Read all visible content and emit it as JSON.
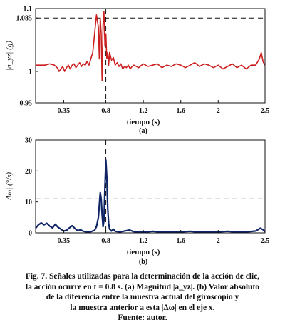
{
  "figure_caption": {
    "line1": "Fig. 7. Señales utilizadas para la determinación de la acción de clic,",
    "line2": "la acción ocurre en t = 0.8 s. (a) Magnitud |a_yz|. (b) Valor absoluto",
    "line3": "de la diferencia entre la muestra actual del giroscopio y",
    "line4": "la muestra anterior a esta |Δω| en el eje x.",
    "line5": "Fuente: autor."
  },
  "colors": {
    "series_a": "#cc1f1f",
    "series_b": "#0f2566",
    "axes": "#111111"
  },
  "chart_data": [
    {
      "type": "line",
      "panel_label": "(a)",
      "xlabel": "tiempo (s)",
      "ylabel": "|a_yz| (g)",
      "xlim": [
        0.05,
        2.5
      ],
      "ylim": [
        0.95,
        1.1
      ],
      "xticks": [
        0.35,
        0.8,
        1.2,
        1.6,
        2.0,
        2.5
      ],
      "xtick_labels": [
        "0.35",
        "0.8",
        "1.2",
        "1.6",
        "2",
        "2.5"
      ],
      "yticks": [
        0.95,
        1.0,
        1.085,
        1.1
      ],
      "ytick_labels": [
        "0.95",
        "1",
        "1.085",
        "1.1"
      ],
      "threshold_y": 1.085,
      "event_x": 0.8,
      "grid": false,
      "series": [
        {
          "x": [
            0.05,
            0.1,
            0.15,
            0.2,
            0.25,
            0.28,
            0.3,
            0.32,
            0.34,
            0.36,
            0.38,
            0.4,
            0.42,
            0.44,
            0.46,
            0.48,
            0.5,
            0.52,
            0.54,
            0.56,
            0.58,
            0.6,
            0.62,
            0.64,
            0.66,
            0.68,
            0.7,
            0.72,
            0.73,
            0.74,
            0.75,
            0.76,
            0.77,
            0.78,
            0.79,
            0.8,
            0.81,
            0.82,
            0.83,
            0.84,
            0.86,
            0.88,
            0.9,
            0.92,
            0.94,
            0.96,
            0.98,
            1.0,
            1.02,
            1.04,
            1.06,
            1.08,
            1.1,
            1.15,
            1.2,
            1.25,
            1.3,
            1.35,
            1.4,
            1.45,
            1.5,
            1.55,
            1.6,
            1.65,
            1.7,
            1.75,
            1.8,
            1.85,
            1.9,
            1.95,
            2.0,
            2.05,
            2.1,
            2.15,
            2.2,
            2.25,
            2.3,
            2.35,
            2.4,
            2.44,
            2.46,
            2.48,
            2.5
          ],
          "y": [
            1.01,
            1.01,
            1.01,
            1.012,
            1.01,
            1.006,
            1.0,
            1.004,
            1.008,
            1.0,
            1.006,
            1.01,
            1.004,
            1.01,
            1.012,
            1.006,
            1.01,
            1.014,
            1.008,
            1.012,
            1.01,
            1.016,
            1.01,
            1.02,
            1.03,
            1.06,
            1.09,
            1.07,
            1.02,
            1.085,
            1.06,
            0.985,
            1.075,
            1.095,
            1.04,
            1.06,
            1.02,
            1.03,
            1.01,
            1.03,
            1.018,
            1.022,
            1.01,
            1.014,
            1.008,
            1.012,
            1.004,
            1.008,
            1.006,
            1.01,
            1.004,
            1.008,
            1.01,
            1.006,
            1.012,
            1.008,
            1.01,
            1.012,
            1.006,
            1.01,
            1.008,
            1.012,
            1.01,
            1.006,
            1.01,
            1.014,
            1.008,
            1.012,
            1.01,
            1.006,
            1.01,
            1.004,
            1.008,
            1.012,
            1.006,
            1.01,
            1.004,
            1.01,
            1.01,
            1.02,
            1.03,
            1.015,
            1.01
          ]
        }
      ]
    },
    {
      "type": "line",
      "panel_label": "(b)",
      "xlabel": "tiempo (s)",
      "ylabel": "|Δω| (°/s)",
      "xlim": [
        0.05,
        2.5
      ],
      "ylim": [
        0,
        30
      ],
      "xticks": [
        0.35,
        0.8,
        1.2,
        1.6,
        2.0,
        2.5
      ],
      "xtick_labels": [
        "0.35",
        "0.8",
        "1.2",
        "1.6",
        "2",
        "2.5"
      ],
      "yticks": [
        0,
        10,
        20,
        30
      ],
      "ytick_labels": [
        "0",
        "10",
        "20",
        "30"
      ],
      "threshold_y": 11,
      "event_x": 0.8,
      "grid": false,
      "series": [
        {
          "x": [
            0.05,
            0.08,
            0.11,
            0.14,
            0.17,
            0.2,
            0.23,
            0.26,
            0.29,
            0.32,
            0.35,
            0.38,
            0.41,
            0.44,
            0.47,
            0.5,
            0.53,
            0.56,
            0.6,
            0.64,
            0.68,
            0.7,
            0.72,
            0.73,
            0.74,
            0.75,
            0.76,
            0.77,
            0.78,
            0.79,
            0.8,
            0.81,
            0.82,
            0.83,
            0.84,
            0.86,
            0.88,
            0.9,
            0.95,
            1.0,
            1.05,
            1.1,
            1.2,
            1.3,
            1.4,
            1.5,
            1.6,
            1.7,
            1.8,
            1.9,
            2.0,
            2.1,
            2.2,
            2.3,
            2.4,
            2.45,
            2.48,
            2.5
          ],
          "y": [
            1.5,
            2.6,
            3.2,
            2.6,
            3.1,
            2.2,
            1.6,
            2.8,
            1.8,
            1.2,
            0.6,
            0.8,
            1.6,
            2.3,
            1.4,
            0.7,
            1.0,
            0.5,
            0.3,
            0.4,
            0.8,
            2.0,
            5.0,
            9.0,
            13.0,
            11.0,
            6.0,
            2.0,
            4.0,
            15.0,
            23.5,
            18.0,
            8.0,
            3.0,
            1.2,
            0.6,
            1.2,
            0.5,
            0.3,
            0.6,
            0.9,
            0.4,
            0.2,
            0.5,
            0.2,
            0.4,
            0.3,
            0.5,
            0.2,
            0.4,
            0.3,
            0.5,
            0.2,
            0.3,
            0.6,
            1.5,
            1.0,
            0.4
          ]
        }
      ]
    }
  ]
}
